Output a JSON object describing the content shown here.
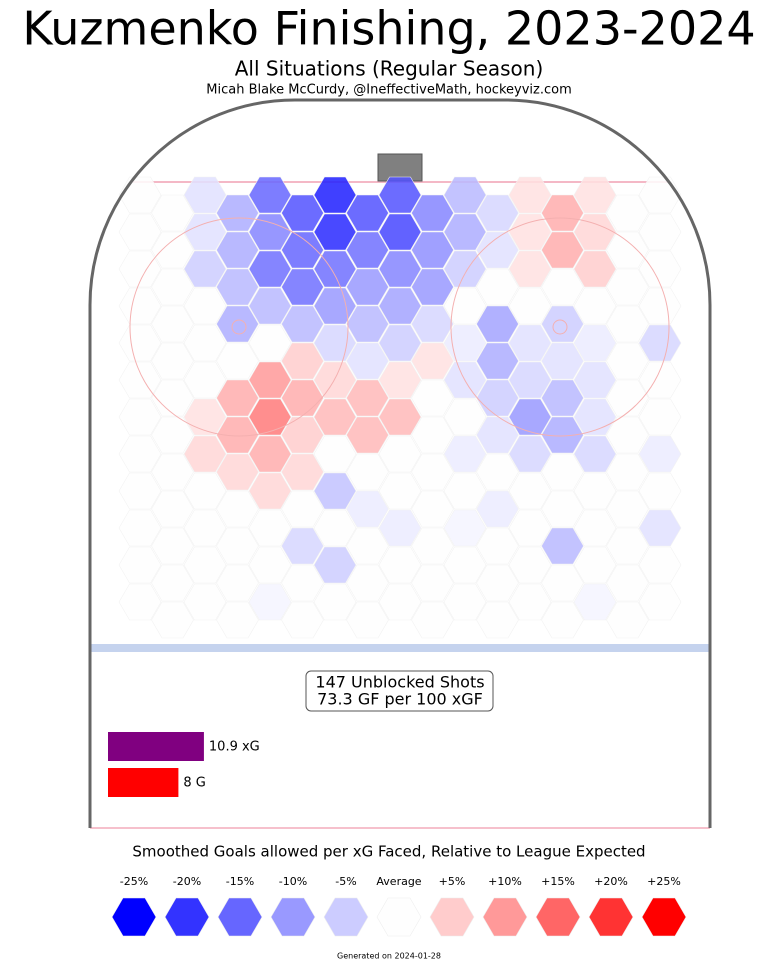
{
  "chart_data": {
    "type": "hexbin",
    "title": "Kuzmenko Finishing, 2023-2024",
    "subtitle": "All Situations (Regular Season)",
    "credit": "Micah Blake McCurdy, @IneffectiveMath, hockeyviz.com",
    "hex_values": [
      [
        0,
        0,
        0,
        0,
        0,
        0,
        0,
        0,
        0,
        0,
        0,
        0
      ],
      [
        0,
        0,
        0,
        0,
        0,
        0,
        0,
        0,
        0,
        0,
        0,
        0
      ],
      [
        -3,
        -3,
        -5,
        0,
        0,
        0,
        3,
        4,
        0,
        0,
        0,
        0
      ],
      [
        -8,
        -8,
        -7,
        -8,
        0,
        8,
        8,
        4,
        0,
        0,
        0,
        0
      ],
      [
        -15,
        -12,
        -14,
        -7,
        0,
        10,
        13,
        8,
        4,
        0,
        0,
        -1
      ],
      [
        -17,
        -15,
        -14,
        -7,
        5,
        8,
        5,
        4,
        0,
        -4,
        0,
        0
      ],
      [
        -22,
        -21,
        -14,
        -10,
        -4,
        4,
        7,
        0,
        -6,
        0,
        -5,
        0
      ],
      [
        -17,
        -14,
        -10,
        -7,
        -3,
        7,
        7,
        0,
        -2,
        0,
        0,
        0
      ],
      [
        -17,
        -18,
        -12,
        -9,
        -5,
        3,
        7,
        0,
        0,
        -2,
        0,
        0
      ],
      [
        -12,
        -11,
        -10,
        -4,
        3,
        0,
        0,
        0,
        0,
        0,
        0,
        0
      ],
      [
        -7,
        -8,
        -5,
        0,
        -2,
        -3,
        0,
        -2,
        0,
        -1,
        0,
        0
      ],
      [
        -4,
        -3,
        0,
        -9,
        -8,
        -5,
        -3,
        0,
        -2,
        0,
        0,
        0
      ],
      [
        3,
        3,
        3,
        0,
        -3,
        -4,
        -10,
        -4,
        0,
        0,
        0,
        0
      ],
      [
        8,
        8,
        0,
        -5,
        -3,
        -7,
        -8,
        0,
        0,
        -7,
        0,
        0
      ],
      [
        3,
        4,
        5,
        0,
        -2,
        -3,
        -3,
        -4,
        0,
        0,
        0,
        -1
      ],
      [
        0,
        0,
        0,
        0,
        0,
        0,
        0,
        0,
        0,
        0,
        0,
        0
      ],
      [
        0,
        0,
        0,
        0,
        -4,
        0,
        0,
        -2,
        0,
        -3,
        0,
        0
      ]
    ],
    "summary": [
      "147 Unblocked Shots",
      "73.3 GF per 100 xGF"
    ],
    "bars": [
      {
        "name": "xG",
        "color": "#800080",
        "value": 10.9,
        "value_label": "10.9 xG"
      },
      {
        "name": "G",
        "color": "#ff0000",
        "value": 8,
        "value_label": "8 G"
      }
    ],
    "legend_title": "Smoothed Goals allowed per xG Faced, Relative to League Expected",
    "legend": [
      {
        "value": -25,
        "label": "-25%",
        "color": "#0000ff"
      },
      {
        "value": -20,
        "label": "-20%",
        "color": "#3333ff"
      },
      {
        "value": -15,
        "label": "-15%",
        "color": "#6666ff"
      },
      {
        "value": -10,
        "label": "-10%",
        "color": "#9999ff"
      },
      {
        "value": -5,
        "label": "-5%",
        "color": "#ccccff"
      },
      {
        "value": 0,
        "label": "Average",
        "color": "#fefefe"
      },
      {
        "value": 5,
        "label": "+5%",
        "color": "#ffcccc"
      },
      {
        "value": 10,
        "label": "+10%",
        "color": "#ff9999"
      },
      {
        "value": 15,
        "label": "+15%",
        "color": "#ff6666"
      },
      {
        "value": 20,
        "label": "+20%",
        "color": "#ff3333"
      },
      {
        "value": 25,
        "label": "+25%",
        "color": "#ff0000"
      }
    ],
    "footer": "Generated on 2024-01-28"
  }
}
